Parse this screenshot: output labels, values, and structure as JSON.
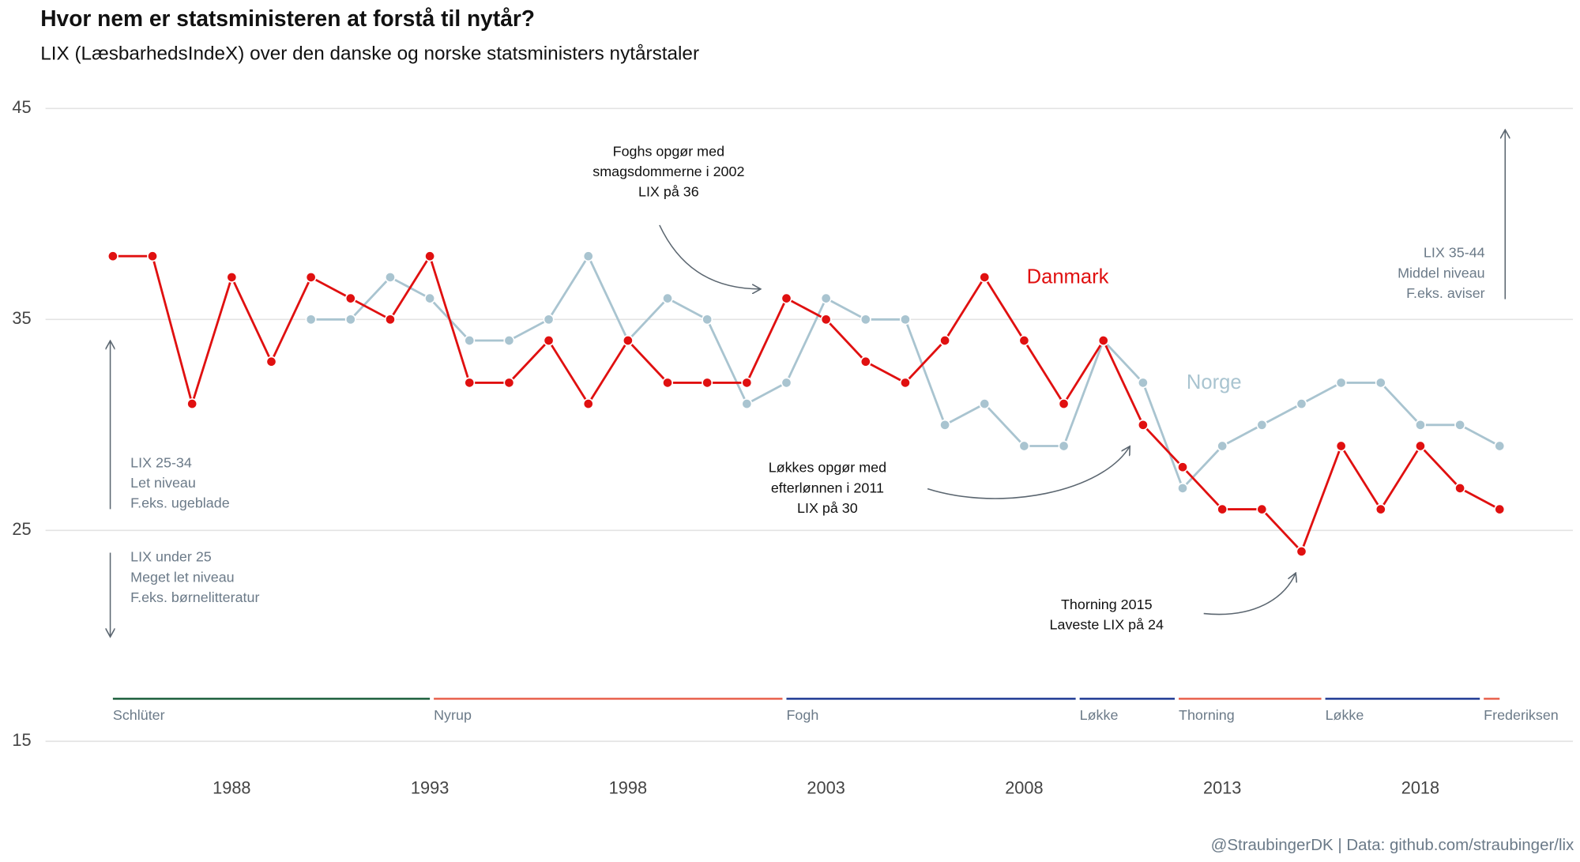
{
  "chart_data": {
    "type": "line",
    "title": "Hvor nem er statsministeren at forstå til nytår?",
    "subtitle": "LIX (LæsbarhedsIndeX) over den danske og norske statsministers nytårstaler",
    "caption": "@StraubingerDK | Data: github.com/straubinger/lix",
    "x": [
      1985,
      1986,
      1987,
      1988,
      1989,
      1990,
      1991,
      1992,
      1993,
      1994,
      1995,
      1996,
      1997,
      1998,
      1999,
      2000,
      2001,
      2002,
      2003,
      2004,
      2005,
      2006,
      2007,
      2008,
      2009,
      2010,
      2011,
      2012,
      2013,
      2014,
      2015,
      2016,
      2017,
      2018,
      2019,
      2020
    ],
    "series": [
      {
        "name": "Danmark",
        "color": "#e01010",
        "values": [
          38,
          38,
          31,
          37,
          33,
          37,
          36,
          35,
          38,
          32,
          32,
          34,
          31,
          34,
          32,
          32,
          32,
          36,
          35,
          33,
          32,
          34,
          37,
          34,
          31,
          34,
          30,
          28,
          26,
          26,
          24,
          29,
          26,
          29,
          27,
          26
        ]
      },
      {
        "name": "Norge",
        "color": "#a9c4d0",
        "values": [
          null,
          null,
          null,
          null,
          null,
          35,
          35,
          37,
          36,
          34,
          34,
          35,
          38,
          34,
          36,
          35,
          31,
          32,
          36,
          35,
          35,
          30,
          31,
          29,
          29,
          34,
          32,
          27,
          29,
          30,
          31,
          32,
          32,
          30,
          30,
          29
        ]
      }
    ],
    "xlim": [
      1983.3,
      2021.85
    ],
    "ylim": [
      15,
      45
    ],
    "xticks": [
      1988,
      1993,
      1998,
      2003,
      2008,
      2013,
      2018
    ],
    "yticks": [
      15,
      25,
      35,
      45
    ],
    "grid": true,
    "periods": [
      {
        "name": "Schlüter",
        "start": 1985,
        "end": 1993,
        "color": "#1b5e3b"
      },
      {
        "name": "Nyrup",
        "start": 1993.1,
        "end": 2001.9,
        "color": "#e8604c"
      },
      {
        "name": "Fogh",
        "start": 2002,
        "end": 2009.3,
        "color": "#1f3a93"
      },
      {
        "name": "Løkke",
        "start": 2009.4,
        "end": 2011.8,
        "color": "#1f3a93"
      },
      {
        "name": "Thorning",
        "start": 2011.9,
        "end": 2015.5,
        "color": "#e8604c"
      },
      {
        "name": "Løkke",
        "start": 2015.6,
        "end": 2019.5,
        "color": "#1f3a93"
      },
      {
        "name": "Frederiksen",
        "start": 2019.6,
        "end": 2020,
        "color": "#e8604c"
      }
    ],
    "annotations": [
      {
        "lines": [
          "Foghs opgør med",
          "smagsdommerne i 2002",
          "LIX på 36"
        ]
      },
      {
        "lines": [
          "Løkkes opgør med",
          "efterlønnen i 2011",
          "LIX på 30"
        ]
      },
      {
        "lines": [
          "Thorning 2015",
          "Laveste LIX på 24"
        ]
      },
      {
        "lines": [
          "LIX 35-44",
          "Middel niveau",
          "F.eks. aviser"
        ]
      },
      {
        "lines": [
          "LIX 25-34",
          "Let niveau",
          "F.eks. ugeblade"
        ]
      },
      {
        "lines": [
          "LIX under 25",
          "Meget let niveau",
          "F.eks. børnelitteratur"
        ]
      }
    ]
  }
}
